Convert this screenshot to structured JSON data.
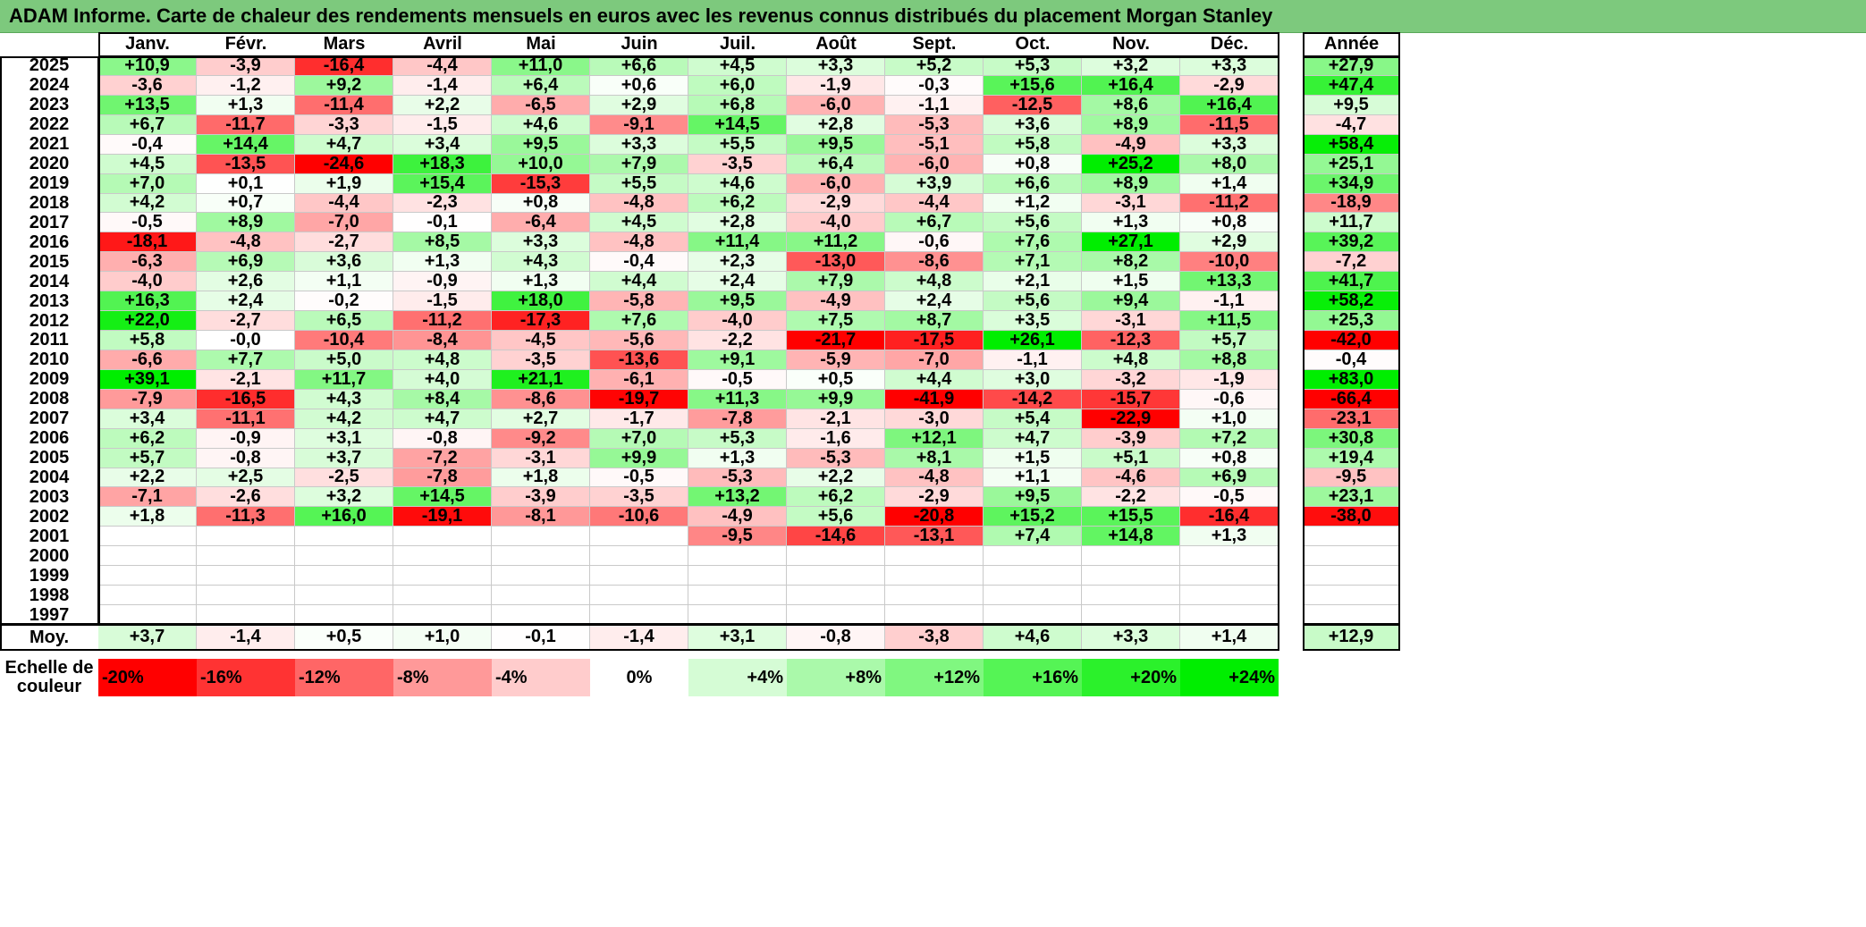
{
  "title": "ADAM Informe. Carte de chaleur des rendements mensuels en euros avec les revenus connus distribués du placement Morgan Stanley",
  "colors": {
    "title_bar": "#7dc97d",
    "negative_max": "#ff0000",
    "neutral": "#ffffff",
    "positive_max": "#00ee00"
  },
  "chart_data": {
    "type": "heatmap",
    "title": "ADAM Informe. Carte de chaleur des rendements mensuels en euros avec les revenus connus distribués du placement Morgan Stanley",
    "columns": [
      "Janv.",
      "Févr.",
      "Mars",
      "Avril",
      "Mai",
      "Juin",
      "Juil.",
      "Août",
      "Sept.",
      "Oct.",
      "Nov.",
      "Déc."
    ],
    "year_column_label": "Année",
    "rows": [
      {
        "year": "2025",
        "months": [
          "+10,9",
          "-3,9",
          "-16,4",
          "-4,4",
          "+11,0",
          "+6,6",
          "+4,5",
          "+3,3",
          "+5,2",
          "+5,3",
          "+3,2",
          "+3,3"
        ],
        "annual": "+27,9"
      },
      {
        "year": "2024",
        "months": [
          "-3,6",
          "-1,2",
          "+9,2",
          "-1,4",
          "+6,4",
          "+0,6",
          "+6,0",
          "-1,9",
          "-0,3",
          "+15,6",
          "+16,4",
          "-2,9"
        ],
        "annual": "+47,4"
      },
      {
        "year": "2023",
        "months": [
          "+13,5",
          "+1,3",
          "-11,4",
          "+2,2",
          "-6,5",
          "+2,9",
          "+6,8",
          "-6,0",
          "-1,1",
          "-12,5",
          "+8,6",
          "+16,4"
        ],
        "annual": "+9,5"
      },
      {
        "year": "2022",
        "months": [
          "+6,7",
          "-11,7",
          "-3,3",
          "-1,5",
          "+4,6",
          "-9,1",
          "+14,5",
          "+2,8",
          "-5,3",
          "+3,6",
          "+8,9",
          "-11,5"
        ],
        "annual": "-4,7"
      },
      {
        "year": "2021",
        "months": [
          "-0,4",
          "+14,4",
          "+4,7",
          "+3,4",
          "+9,5",
          "+3,3",
          "+5,5",
          "+9,5",
          "-5,1",
          "+5,8",
          "-4,9",
          "+3,3"
        ],
        "annual": "+58,4"
      },
      {
        "year": "2020",
        "months": [
          "+4,5",
          "-13,5",
          "-24,6",
          "+18,3",
          "+10,0",
          "+7,9",
          "-3,5",
          "+6,4",
          "-6,0",
          "+0,8",
          "+25,2",
          "+8,0"
        ],
        "annual": "+25,1"
      },
      {
        "year": "2019",
        "months": [
          "+7,0",
          "+0,1",
          "+1,9",
          "+15,4",
          "-15,3",
          "+5,5",
          "+4,6",
          "-6,0",
          "+3,9",
          "+6,6",
          "+8,9",
          "+1,4"
        ],
        "annual": "+34,9"
      },
      {
        "year": "2018",
        "months": [
          "+4,2",
          "+0,7",
          "-4,4",
          "-2,3",
          "+0,8",
          "-4,8",
          "+6,2",
          "-2,9",
          "-4,4",
          "+1,2",
          "-3,1",
          "-11,2"
        ],
        "annual": "-18,9"
      },
      {
        "year": "2017",
        "months": [
          "-0,5",
          "+8,9",
          "-7,0",
          "-0,1",
          "-6,4",
          "+4,5",
          "+2,8",
          "-4,0",
          "+6,7",
          "+5,6",
          "+1,3",
          "+0,8"
        ],
        "annual": "+11,7"
      },
      {
        "year": "2016",
        "months": [
          "-18,1",
          "-4,8",
          "-2,7",
          "+8,5",
          "+3,3",
          "-4,8",
          "+11,4",
          "+11,2",
          "-0,6",
          "+7,6",
          "+27,1",
          "+2,9"
        ],
        "annual": "+39,2"
      },
      {
        "year": "2015",
        "months": [
          "-6,3",
          "+6,9",
          "+3,6",
          "+1,3",
          "+4,3",
          "-0,4",
          "+2,3",
          "-13,0",
          "-8,6",
          "+7,1",
          "+8,2",
          "-10,0"
        ],
        "annual": "-7,2"
      },
      {
        "year": "2014",
        "months": [
          "-4,0",
          "+2,6",
          "+1,1",
          "-0,9",
          "+1,3",
          "+4,4",
          "+2,4",
          "+7,9",
          "+4,8",
          "+2,1",
          "+1,5",
          "+13,3"
        ],
        "annual": "+41,7"
      },
      {
        "year": "2013",
        "months": [
          "+16,3",
          "+2,4",
          "-0,2",
          "-1,5",
          "+18,0",
          "-5,8",
          "+9,5",
          "-4,9",
          "+2,4",
          "+5,6",
          "+9,4",
          "-1,1"
        ],
        "annual": "+58,2"
      },
      {
        "year": "2012",
        "months": [
          "+22,0",
          "-2,7",
          "+6,5",
          "-11,2",
          "-17,3",
          "+7,6",
          "-4,0",
          "+7,5",
          "+8,7",
          "+3,5",
          "-3,1",
          "+11,5"
        ],
        "annual": "+25,3"
      },
      {
        "year": "2011",
        "months": [
          "+5,8",
          "-0,0",
          "-10,4",
          "-8,4",
          "-4,5",
          "-5,6",
          "-2,2",
          "-21,7",
          "-17,5",
          "+26,1",
          "-12,3",
          "+5,7"
        ],
        "annual": "-42,0"
      },
      {
        "year": "2010",
        "months": [
          "-6,6",
          "+7,7",
          "+5,0",
          "+4,8",
          "-3,5",
          "-13,6",
          "+9,1",
          "-5,9",
          "-7,0",
          "-1,1",
          "+4,8",
          "+8,8"
        ],
        "annual": "-0,4"
      },
      {
        "year": "2009",
        "months": [
          "+39,1",
          "-2,1",
          "+11,7",
          "+4,0",
          "+21,1",
          "-6,1",
          "-0,5",
          "+0,5",
          "+4,4",
          "+3,0",
          "-3,2",
          "-1,9"
        ],
        "annual": "+83,0"
      },
      {
        "year": "2008",
        "months": [
          "-7,9",
          "-16,5",
          "+4,3",
          "+8,4",
          "-8,6",
          "-19,7",
          "+11,3",
          "+9,9",
          "-41,9",
          "-14,2",
          "-15,7",
          "-0,6"
        ],
        "annual": "-66,4"
      },
      {
        "year": "2007",
        "months": [
          "+3,4",
          "-11,1",
          "+4,2",
          "+4,7",
          "+2,7",
          "-1,7",
          "-7,8",
          "-2,1",
          "-3,0",
          "+5,4",
          "-22,9",
          "+1,0"
        ],
        "annual": "-23,1"
      },
      {
        "year": "2006",
        "months": [
          "+6,2",
          "-0,9",
          "+3,1",
          "-0,8",
          "-9,2",
          "+7,0",
          "+5,3",
          "-1,6",
          "+12,1",
          "+4,7",
          "-3,9",
          "+7,2"
        ],
        "annual": "+30,8"
      },
      {
        "year": "2005",
        "months": [
          "+5,7",
          "-0,8",
          "+3,7",
          "-7,2",
          "-3,1",
          "+9,9",
          "+1,3",
          "-5,3",
          "+8,1",
          "+1,5",
          "+5,1",
          "+0,8"
        ],
        "annual": "+19,4"
      },
      {
        "year": "2004",
        "months": [
          "+2,2",
          "+2,5",
          "-2,5",
          "-7,8",
          "+1,8",
          "-0,5",
          "-5,3",
          "+2,2",
          "-4,8",
          "+1,1",
          "-4,6",
          "+6,9"
        ],
        "annual": "-9,5"
      },
      {
        "year": "2003",
        "months": [
          "-7,1",
          "-2,6",
          "+3,2",
          "+14,5",
          "-3,9",
          "-3,5",
          "+13,2",
          "+6,2",
          "-2,9",
          "+9,5",
          "-2,2",
          "-0,5"
        ],
        "annual": "+23,1"
      },
      {
        "year": "2002",
        "months": [
          "+1,8",
          "-11,3",
          "+16,0",
          "-19,1",
          "-8,1",
          "-10,6",
          "-4,9",
          "+5,6",
          "-20,8",
          "+15,2",
          "+15,5",
          "-16,4"
        ],
        "annual": "-38,0"
      },
      {
        "year": "2001",
        "months": [
          "",
          "",
          "",
          "",
          "",
          "",
          "-9,5",
          "-14,6",
          "-13,1",
          "+7,4",
          "+14,8",
          "+1,3"
        ],
        "annual": ""
      },
      {
        "year": "2000",
        "months": [
          "",
          "",
          "",
          "",
          "",
          "",
          "",
          "",
          "",
          "",
          "",
          ""
        ],
        "annual": ""
      },
      {
        "year": "1999",
        "months": [
          "",
          "",
          "",
          "",
          "",
          "",
          "",
          "",
          "",
          "",
          "",
          ""
        ],
        "annual": ""
      },
      {
        "year": "1998",
        "months": [
          "",
          "",
          "",
          "",
          "",
          "",
          "",
          "",
          "",
          "",
          "",
          ""
        ],
        "annual": ""
      },
      {
        "year": "1997",
        "months": [
          "",
          "",
          "",
          "",
          "",
          "",
          "",
          "",
          "",
          "",
          "",
          ""
        ],
        "annual": ""
      }
    ],
    "average": {
      "label": "Moy.",
      "months": [
        "+3,7",
        "-1,4",
        "+0,5",
        "+1,0",
        "-0,1",
        "-1,4",
        "+3,1",
        "-0,8",
        "-3,8",
        "+4,6",
        "+3,3",
        "+1,4"
      ],
      "annual": "+12,9"
    },
    "scale": {
      "label_line1": "Echelle de",
      "label_line2": "couleur",
      "steps": [
        "-20%",
        "-16%",
        "-12%",
        "-8%",
        "-4%",
        "0%",
        "+4%",
        "+8%",
        "+12%",
        "+16%",
        "+20%",
        "+24%"
      ],
      "step_values": [
        -20,
        -16,
        -12,
        -8,
        -4,
        0,
        4,
        8,
        12,
        16,
        20,
        24
      ]
    },
    "color_range_monthly": [
      -20,
      24
    ],
    "color_range_annual": [
      -40,
      60
    ]
  }
}
